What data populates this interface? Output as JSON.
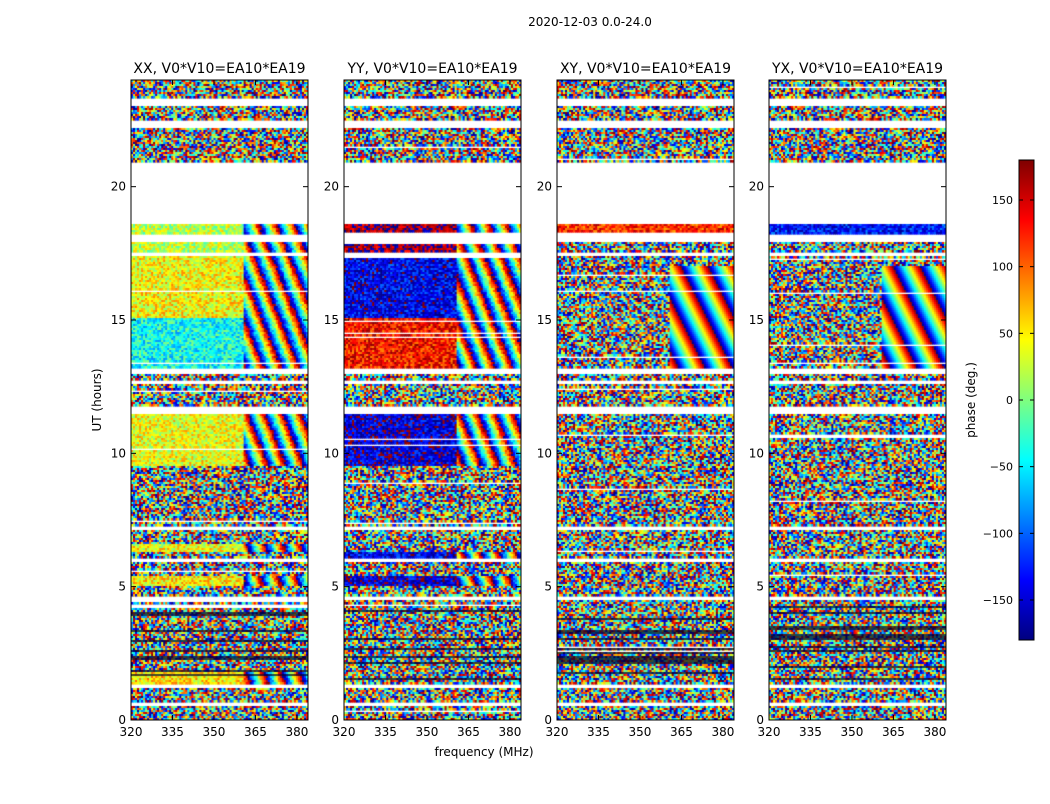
{
  "suptitle": "2020-12-03 0.0-24.0",
  "chart_data": {
    "type": "heatmap",
    "xlabel": "frequency (MHz)",
    "ylabel": "UT (hours)",
    "xlim": [
      320,
      384
    ],
    "ylim": [
      0,
      24
    ],
    "xticks": [
      320,
      335,
      350,
      365,
      380
    ],
    "yticks": [
      0,
      5,
      10,
      15,
      20
    ],
    "colorbar": {
      "label": "phase (deg.)",
      "range": [
        -180,
        180
      ],
      "ticks": [
        -150,
        -100,
        -50,
        0,
        50,
        100,
        150
      ],
      "tick_labels": [
        "−150",
        "−100",
        "−50",
        "0",
        "50",
        "100",
        "150"
      ],
      "colormap": [
        "#00007f",
        "#0000ff",
        "#007fff",
        "#00ffff",
        "#7fff7f",
        "#ffff00",
        "#ff7f00",
        "#ff0000",
        "#7f0000"
      ]
    },
    "gaps_hours": [
      [
        18.6,
        20.9
      ],
      [
        23.0,
        23.3
      ],
      [
        22.2,
        22.5
      ],
      [
        17.9,
        18.2
      ],
      [
        17.4,
        17.55
      ],
      [
        13.0,
        13.2
      ],
      [
        12.6,
        12.75
      ],
      [
        11.5,
        11.8
      ],
      [
        7.15,
        7.3
      ],
      [
        5.95,
        6.05
      ],
      [
        4.5,
        4.62
      ],
      [
        1.2,
        1.35
      ],
      [
        0.55,
        0.65
      ]
    ],
    "panels": [
      {
        "title": "XX, V0*V10=EA10*EA19",
        "coherent_bands": [
          {
            "t": [
              17.55,
              18.6
            ],
            "phase_deg": 20,
            "f_max": 361
          },
          {
            "t": [
              15.1,
              17.4
            ],
            "phase_deg": 45,
            "f_max": 361
          },
          {
            "t": [
              13.2,
              15.1
            ],
            "phase_deg": -40,
            "f_max": 361
          },
          {
            "t": [
              9.5,
              11.5
            ],
            "phase_deg": 40,
            "f_max": 361
          },
          {
            "t": [
              5.0,
              5.4
            ],
            "phase_deg": 50,
            "f_max": 361
          },
          {
            "t": [
              6.3,
              6.6
            ],
            "phase_deg": 40,
            "f_max": 361
          },
          {
            "t": [
              1.35,
              1.8
            ],
            "phase_deg": 55,
            "f_max": 361
          }
        ]
      },
      {
        "title": "YY, V0*V10=EA10*EA19",
        "coherent_bands": [
          {
            "t": [
              17.55,
              18.6
            ],
            "phase_deg": 170,
            "f_max": 361
          },
          {
            "t": [
              15.1,
              17.4
            ],
            "phase_deg": -140,
            "f_max": 361
          },
          {
            "t": [
              13.2,
              15.1
            ],
            "phase_deg": 130,
            "f_max": 361
          },
          {
            "t": [
              9.5,
              11.5
            ],
            "phase_deg": -150,
            "f_max": 361
          },
          {
            "t": [
              5.0,
              5.4
            ],
            "phase_deg": -150,
            "f_max": 361
          },
          {
            "t": [
              6.0,
              6.3
            ],
            "phase_deg": -140,
            "f_max": 361
          }
        ]
      },
      {
        "title": "XY, V0*V10=EA10*EA19",
        "coherent_bands": [
          {
            "t": [
              17.9,
              18.6
            ],
            "phase_deg": 120,
            "f_max": 384
          }
        ]
      },
      {
        "title": "YX, V0*V10=EA10*EA19",
        "coherent_bands": [
          {
            "t": [
              17.9,
              18.6
            ],
            "phase_deg": -130,
            "f_max": 384
          }
        ]
      }
    ]
  }
}
